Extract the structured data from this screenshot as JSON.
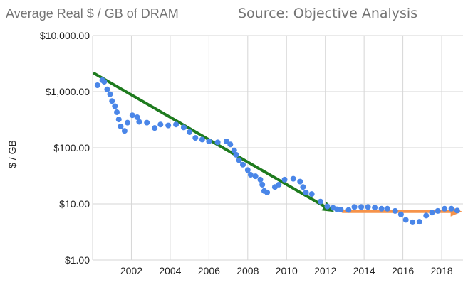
{
  "chart_data": {
    "type": "scatter",
    "title": "Average Real $ / GB of DRAM",
    "subtitle": "Source: Objective Analysis",
    "xlabel": "",
    "ylabel": "$ / GB",
    "yscale": "log",
    "ylim": [
      1,
      10000
    ],
    "xlim": [
      2000.0,
      2019.1
    ],
    "grid": true,
    "y_ticks": [
      1,
      10,
      100,
      1000,
      10000
    ],
    "y_tick_labels": [
      "$1.00",
      "$10.00",
      "$100.00",
      "$1,000.00",
      "$10,000.00"
    ],
    "x_ticks": [
      2002,
      2004,
      2006,
      2008,
      2010,
      2012,
      2014,
      2016,
      2018
    ],
    "x_tick_labels": [
      "2002",
      "2004",
      "2006",
      "2008",
      "2010",
      "2012",
      "2014",
      "2016",
      "2018"
    ],
    "series": [
      {
        "color": "#4a86e8",
        "points": [
          [
            2000.25,
            1300
          ],
          [
            2000.5,
            1600
          ],
          [
            2000.6,
            1500
          ],
          [
            2000.75,
            1100
          ],
          [
            2000.9,
            900
          ],
          [
            2001.0,
            680
          ],
          [
            2001.15,
            550
          ],
          [
            2001.25,
            430
          ],
          [
            2001.35,
            320
          ],
          [
            2001.45,
            240
          ],
          [
            2001.65,
            200
          ],
          [
            2001.8,
            280
          ],
          [
            2002.05,
            380
          ],
          [
            2002.3,
            350
          ],
          [
            2002.4,
            290
          ],
          [
            2002.8,
            280
          ],
          [
            2003.2,
            225
          ],
          [
            2003.5,
            260
          ],
          [
            2003.9,
            250
          ],
          [
            2004.3,
            260
          ],
          [
            2004.7,
            230
          ],
          [
            2005.0,
            190
          ],
          [
            2005.3,
            150
          ],
          [
            2005.65,
            140
          ],
          [
            2006.0,
            130
          ],
          [
            2006.45,
            125
          ],
          [
            2006.9,
            130
          ],
          [
            2007.1,
            115
          ],
          [
            2007.3,
            90
          ],
          [
            2007.4,
            75
          ],
          [
            2007.55,
            60
          ],
          [
            2007.75,
            50
          ],
          [
            2008.0,
            40
          ],
          [
            2008.15,
            33
          ],
          [
            2008.4,
            31
          ],
          [
            2008.65,
            27
          ],
          [
            2008.75,
            22
          ],
          [
            2008.85,
            17
          ],
          [
            2009.0,
            16
          ],
          [
            2009.4,
            20
          ],
          [
            2009.6,
            22
          ],
          [
            2009.9,
            27
          ],
          [
            2010.35,
            28
          ],
          [
            2010.7,
            25
          ],
          [
            2010.85,
            20
          ],
          [
            2011.0,
            16
          ],
          [
            2011.3,
            15
          ],
          [
            2011.75,
            11
          ],
          [
            2012.1,
            9
          ],
          [
            2012.4,
            8.5
          ],
          [
            2012.6,
            8.0
          ],
          [
            2012.8,
            7.9
          ],
          [
            2013.2,
            7.8
          ],
          [
            2013.5,
            8.8
          ],
          [
            2013.85,
            8.8
          ],
          [
            2014.2,
            8.8
          ],
          [
            2014.55,
            8.6
          ],
          [
            2014.9,
            8.2
          ],
          [
            2015.2,
            8.2
          ],
          [
            2015.6,
            7.5
          ],
          [
            2015.9,
            6.5
          ],
          [
            2016.15,
            5.2
          ],
          [
            2016.5,
            4.7
          ],
          [
            2016.85,
            4.8
          ],
          [
            2017.2,
            6.2
          ],
          [
            2017.5,
            7.0
          ],
          [
            2017.8,
            7.5
          ],
          [
            2018.15,
            8.2
          ],
          [
            2018.5,
            8.2
          ],
          [
            2018.8,
            7.6
          ]
        ]
      }
    ],
    "trend_arrows": [
      {
        "color": "#1e7b1e",
        "from": [
          2000.1,
          2100
        ],
        "to": [
          2012.45,
          7.2
        ]
      },
      {
        "color": "#f6934a",
        "from": [
          2012.9,
          7.3
        ],
        "to": [
          2019.05,
          7.3
        ]
      }
    ]
  }
}
